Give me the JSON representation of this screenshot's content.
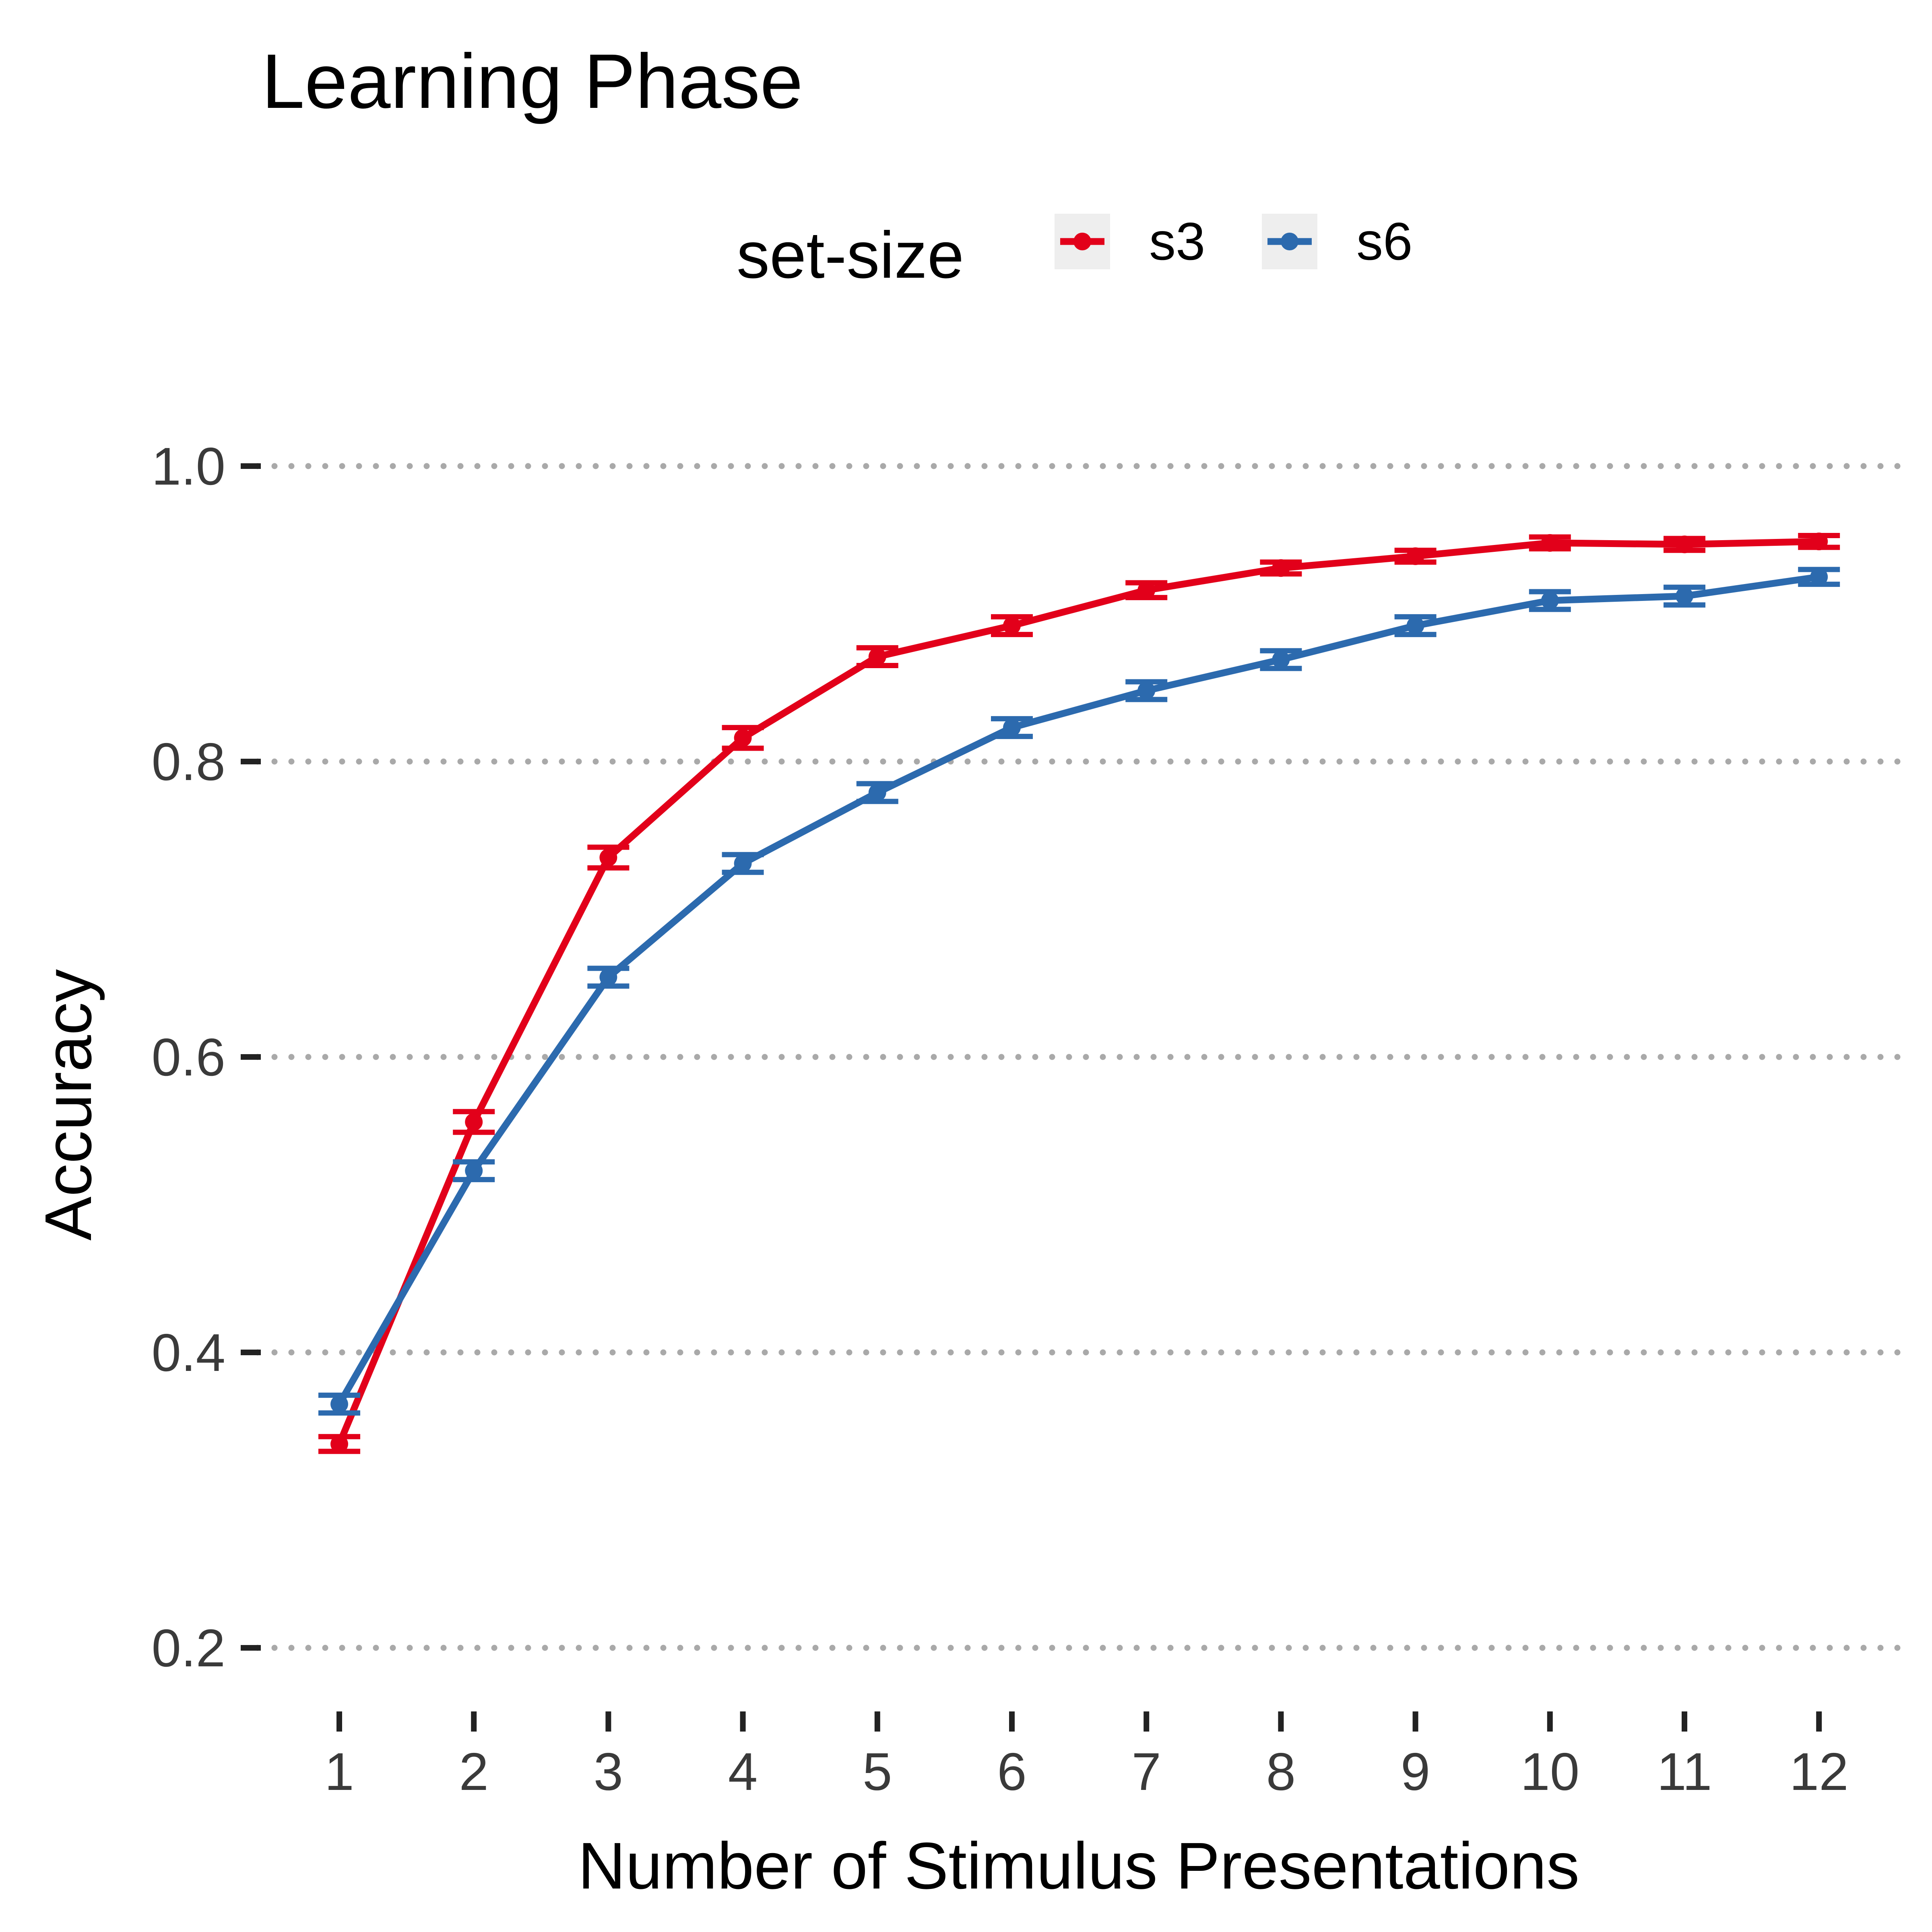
{
  "chart_data": {
    "type": "line",
    "title": "Learning Phase",
    "xlabel": "Number of Stimulus Presentations",
    "ylabel": "Accuracy",
    "x": [
      1,
      2,
      3,
      4,
      5,
      6,
      7,
      8,
      9,
      10,
      11,
      12
    ],
    "x_tick_labels": [
      "1",
      "2",
      "3",
      "4",
      "5",
      "6",
      "7",
      "8",
      "9",
      "10",
      "11",
      "12"
    ],
    "y_ticks": [
      0.2,
      0.4,
      0.6,
      0.8,
      1.0
    ],
    "y_tick_labels": [
      "0.2",
      "0.4",
      "0.6",
      "0.8",
      "1.0"
    ],
    "ylim": [
      0.19,
      1.06
    ],
    "grid": "horizontal dotted",
    "legend": {
      "title": "set-size",
      "position": "top"
    },
    "series": [
      {
        "name": "s3",
        "color": "#E2001A",
        "values": [
          0.338,
          0.556,
          0.735,
          0.816,
          0.871,
          0.892,
          0.916,
          0.931,
          0.939,
          0.948,
          0.947,
          0.949
        ],
        "error": [
          0.005,
          0.007,
          0.007,
          0.007,
          0.006,
          0.006,
          0.005,
          0.004,
          0.004,
          0.004,
          0.004,
          0.004
        ]
      },
      {
        "name": "s6",
        "color": "#2C6AAE",
        "values": [
          0.365,
          0.523,
          0.654,
          0.731,
          0.779,
          0.823,
          0.848,
          0.869,
          0.892,
          0.909,
          0.912,
          0.925
        ],
        "error": [
          0.006,
          0.006,
          0.006,
          0.006,
          0.006,
          0.006,
          0.006,
          0.006,
          0.006,
          0.006,
          0.006,
          0.005
        ]
      }
    ]
  }
}
